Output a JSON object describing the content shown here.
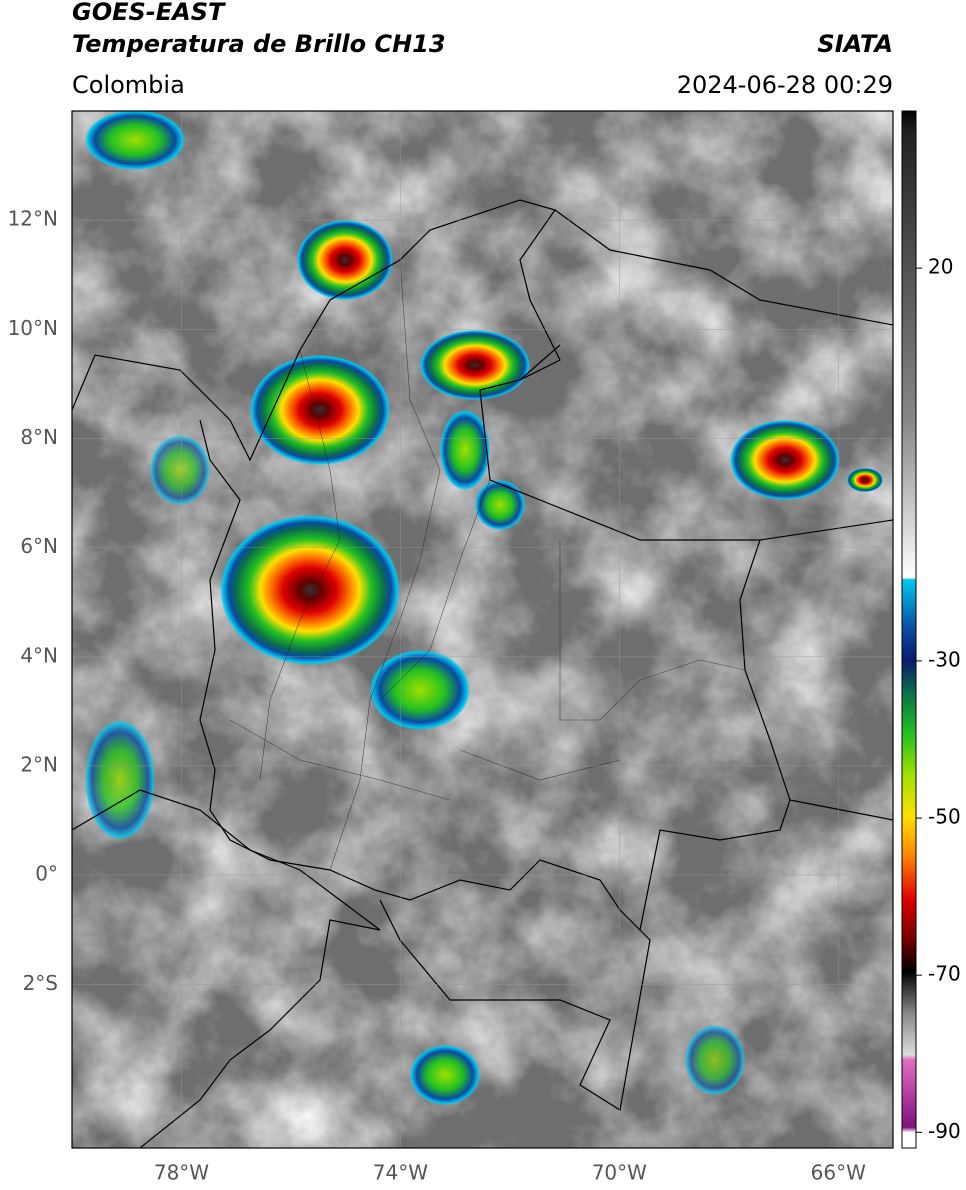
{
  "header": {
    "title": "GOES-EAST",
    "subtitle": "Temperatura de Brillo CH13",
    "source": "SIATA",
    "region": "Colombia",
    "datetime": "2024-06-28 00:29"
  },
  "map": {
    "lonlim": [
      -80,
      -65
    ],
    "latlim": [
      -5,
      14
    ],
    "lon_ticks": [
      {
        "value": -78,
        "label": "78°W"
      },
      {
        "value": -74,
        "label": "74°W"
      },
      {
        "value": -70,
        "label": "70°W"
      },
      {
        "value": -66,
        "label": "66°W"
      }
    ],
    "lat_ticks": [
      {
        "value": 12,
        "label": "12°N"
      },
      {
        "value": 10,
        "label": "10°N"
      },
      {
        "value": 8,
        "label": "8°N"
      },
      {
        "value": 6,
        "label": "6°N"
      },
      {
        "value": 4,
        "label": "4°N"
      },
      {
        "value": 2,
        "label": "2°N"
      },
      {
        "value": 0,
        "label": "0°"
      },
      {
        "value": -2,
        "label": "2°S"
      }
    ]
  },
  "colorbar": {
    "lim": [
      -92,
      40
    ],
    "ticks": [
      20,
      -30,
      -50,
      -70,
      -90
    ]
  }
}
